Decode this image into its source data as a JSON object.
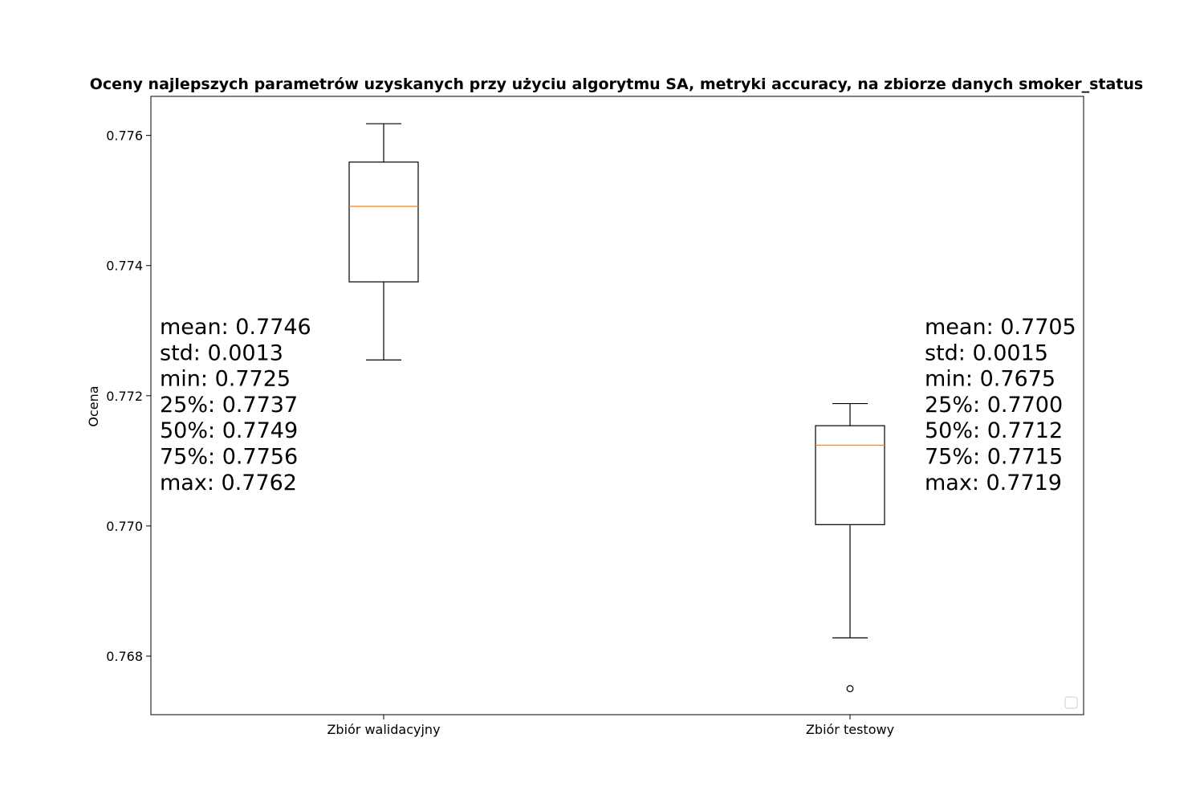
{
  "chart_data": {
    "type": "box",
    "title": "Oceny najlepszych parametrów uzyskanych przy użyciu algorytmu SA, metryki accuracy, na zbiorze danych smoker_status",
    "xlabel": "",
    "ylabel": "Ocena",
    "ylim": [
      0.7671,
      0.7766
    ],
    "yticks": [
      "0.768",
      "0.770",
      "0.772",
      "0.774",
      "0.776"
    ],
    "grid": false,
    "legend": "lower right, empty",
    "colors": {
      "box": "#000000",
      "median": "#ff7f0e"
    },
    "categories": [
      "Zbiór walidacyjny",
      "Zbiór testowy"
    ],
    "boxes": [
      {
        "category": "Zbiór walidacyjny",
        "whisker_low": 0.77255,
        "q1": 0.77375,
        "median": 0.77491,
        "q3": 0.77559,
        "whisker_high": 0.77618,
        "outliers": [],
        "stats_lines": [
          "mean: 0.7746",
          "std: 0.0013",
          "min: 0.7725",
          "25%: 0.7737",
          "50%: 0.7749",
          "75%: 0.7756",
          "max: 0.7762"
        ]
      },
      {
        "category": "Zbiór testowy",
        "whisker_low": 0.76828,
        "q1": 0.77002,
        "median": 0.77124,
        "q3": 0.77154,
        "whisker_high": 0.77188,
        "outliers": [
          0.7675
        ],
        "stats_lines": [
          "mean: 0.7705",
          "std: 0.0015",
          "min: 0.7675",
          "25%: 0.7700",
          "50%: 0.7712",
          "75%: 0.7715",
          "max: 0.7719"
        ]
      }
    ]
  }
}
